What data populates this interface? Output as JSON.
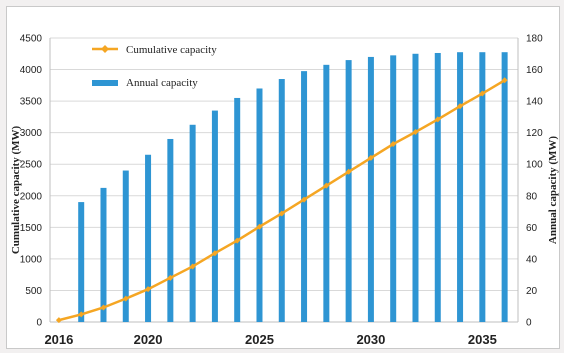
{
  "chart_data": {
    "type": "bar+line",
    "x_ticks": [
      "2016",
      "2020",
      "2025",
      "2030",
      "2035"
    ],
    "x": [
      2016,
      2017,
      2018,
      2019,
      2020,
      2021,
      2022,
      2023,
      2024,
      2025,
      2026,
      2027,
      2028,
      2029,
      2030,
      2031,
      2032,
      2033,
      2034,
      2035,
      2036
    ],
    "series": [
      {
        "name": "Cumulative capacity",
        "kind": "line",
        "axis": "left",
        "color": "#f5a623",
        "values": [
          30,
          120,
          230,
          370,
          520,
          700,
          880,
          1090,
          1290,
          1510,
          1720,
          1940,
          2160,
          2380,
          2600,
          2820,
          3010,
          3210,
          3420,
          3620,
          3830
        ]
      },
      {
        "name": "Annual capacity",
        "kind": "bar",
        "axis": "right",
        "color": "#2e95d3",
        "x": [
          2017,
          2018,
          2019,
          2020,
          2021,
          2022,
          2023,
          2024,
          2025,
          2026,
          2027,
          2028,
          2029,
          2030,
          2031,
          2032,
          2033,
          2034,
          2035,
          2036
        ],
        "values": [
          76,
          85,
          96,
          106,
          116,
          125,
          134,
          142,
          148,
          154,
          159,
          163,
          166,
          168,
          169,
          170,
          170.5,
          171,
          171,
          171
        ]
      }
    ],
    "ylabel_left": "Cumulative capacity (MW)",
    "ylabel_right": "Annual capacity (MW)",
    "ylim_left": [
      0,
      4500
    ],
    "yticks_left": [
      0,
      500,
      1000,
      1500,
      2000,
      2500,
      3000,
      3500,
      4000,
      4500
    ],
    "ylim_right": [
      0,
      180
    ],
    "yticks_right": [
      0,
      20,
      40,
      60,
      80,
      100,
      120,
      140,
      160,
      180
    ],
    "grid": true,
    "legend_position": "top-left"
  }
}
